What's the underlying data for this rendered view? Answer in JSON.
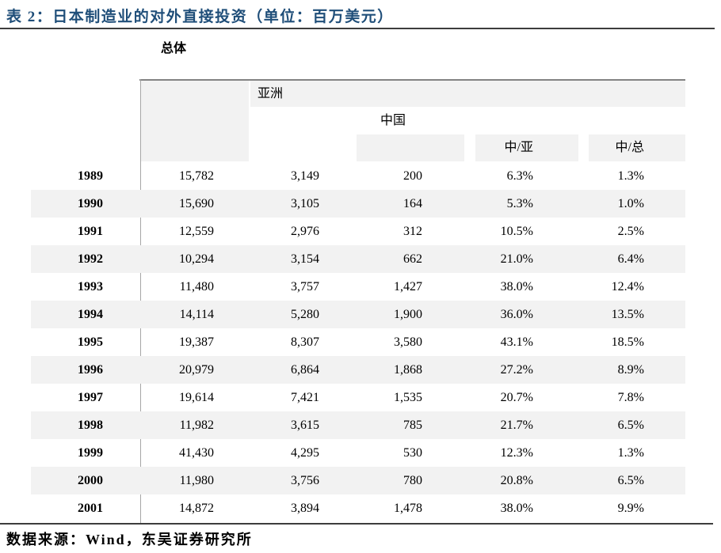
{
  "title": "表 2：日本制造业的对外直接投资（单位：百万美元）",
  "header": {
    "total_label": "总体",
    "asia_label": "亚洲",
    "china_label": "中国",
    "china_over_asia_label": "中/亚",
    "china_over_total_label": "中/总"
  },
  "table": {
    "columns": [
      "year",
      "total",
      "asia",
      "china",
      "china_over_asia",
      "china_over_total"
    ],
    "rows": [
      {
        "year": "1989",
        "total": "15,782",
        "asia": "3,149",
        "china": "200",
        "china_over_asia": "6.3%",
        "china_over_total": "1.3%"
      },
      {
        "year": "1990",
        "total": "15,690",
        "asia": "3,105",
        "china": "164",
        "china_over_asia": "5.3%",
        "china_over_total": "1.0%"
      },
      {
        "year": "1991",
        "total": "12,559",
        "asia": "2,976",
        "china": "312",
        "china_over_asia": "10.5%",
        "china_over_total": "2.5%"
      },
      {
        "year": "1992",
        "total": "10,294",
        "asia": "3,154",
        "china": "662",
        "china_over_asia": "21.0%",
        "china_over_total": "6.4%"
      },
      {
        "year": "1993",
        "total": "11,480",
        "asia": "3,757",
        "china": "1,427",
        "china_over_asia": "38.0%",
        "china_over_total": "12.4%"
      },
      {
        "year": "1994",
        "total": "14,114",
        "asia": "5,280",
        "china": "1,900",
        "china_over_asia": "36.0%",
        "china_over_total": "13.5%"
      },
      {
        "year": "1995",
        "total": "19,387",
        "asia": "8,307",
        "china": "3,580",
        "china_over_asia": "43.1%",
        "china_over_total": "18.5%"
      },
      {
        "year": "1996",
        "total": "20,979",
        "asia": "6,864",
        "china": "1,868",
        "china_over_asia": "27.2%",
        "china_over_total": "8.9%"
      },
      {
        "year": "1997",
        "total": "19,614",
        "asia": "7,421",
        "china": "1,535",
        "china_over_asia": "20.7%",
        "china_over_total": "7.8%"
      },
      {
        "year": "1998",
        "total": "11,982",
        "asia": "3,615",
        "china": "785",
        "china_over_asia": "21.7%",
        "china_over_total": "6.5%"
      },
      {
        "year": "1999",
        "total": "41,430",
        "asia": "4,295",
        "china": "530",
        "china_over_asia": "12.3%",
        "china_over_total": "1.3%"
      },
      {
        "year": "2000",
        "total": "11,980",
        "asia": "3,756",
        "china": "780",
        "china_over_asia": "20.8%",
        "china_over_total": "6.5%"
      },
      {
        "year": "2001",
        "total": "14,872",
        "asia": "3,894",
        "china": "1,478",
        "china_over_asia": "38.0%",
        "china_over_total": "9.9%"
      }
    ]
  },
  "footer": "数据来源：Wind，东吴证券研究所",
  "colors": {
    "title": "#1f4e79",
    "stripe": "#f2f2f2",
    "rule_dark": "#3d3d3d",
    "rule_gray": "#838383"
  }
}
